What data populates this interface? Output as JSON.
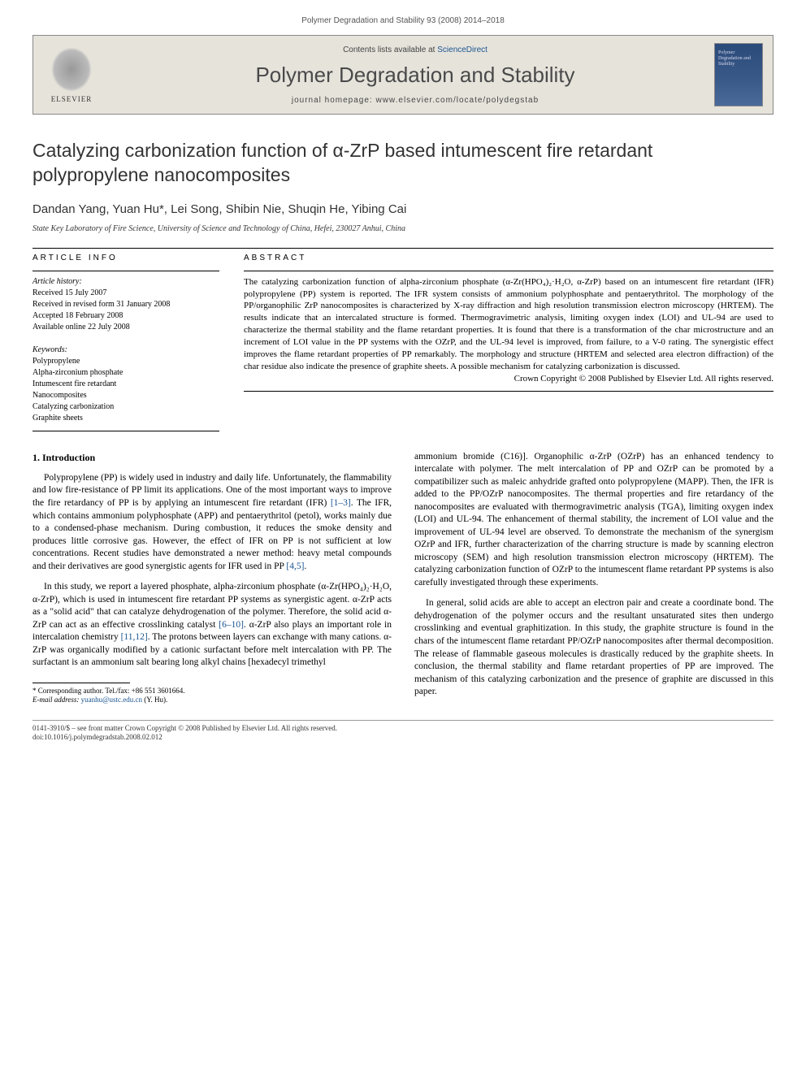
{
  "page_header": "Polymer Degradation and Stability 93 (2008) 2014–2018",
  "journal_box": {
    "elsevier": "ELSEVIER",
    "contents_prefix": "Contents lists available at ",
    "contents_link": "ScienceDirect",
    "journal_title": "Polymer Degradation and Stability",
    "homepage_prefix": "journal homepage: ",
    "homepage_url": "www.elsevier.com/locate/polydegstab",
    "cover_text": "Polymer Degradation and Stability"
  },
  "article": {
    "title": "Catalyzing carbonization function of α-ZrP based intumescent fire retardant polypropylene nanocomposites",
    "authors": "Dandan Yang, Yuan Hu*, Lei Song, Shibin Nie, Shuqin He, Yibing Cai",
    "affiliation": "State Key Laboratory of Fire Science, University of Science and Technology of China, Hefei, 230027 Anhui, China"
  },
  "info": {
    "heading": "ARTICLE INFO",
    "history_label": "Article history:",
    "received": "Received 15 July 2007",
    "revised": "Received in revised form 31 January 2008",
    "accepted": "Accepted 18 February 2008",
    "online": "Available online 22 July 2008",
    "keywords_label": "Keywords:",
    "keywords": [
      "Polypropylene",
      "Alpha-zirconium phosphate",
      "Intumescent fire retardant",
      "Nanocomposites",
      "Catalyzing carbonization",
      "Graphite sheets"
    ]
  },
  "abstract": {
    "heading": "ABSTRACT",
    "text": "The catalyzing carbonization function of alpha-zirconium phosphate (α-Zr(HPO₄)₂·H₂O, α-ZrP) based on an intumescent fire retardant (IFR) polypropylene (PP) system is reported. The IFR system consists of ammonium polyphosphate and pentaerythritol. The morphology of the PP/organophilic ZrP nanocomposites is characterized by X-ray diffraction and high resolution transmission electron microscopy (HRTEM). The results indicate that an intercalated structure is formed. Thermogravimetric analysis, limiting oxygen index (LOI) and UL-94 are used to characterize the thermal stability and the flame retardant properties. It is found that there is a transformation of the char microstructure and an increment of LOI value in the PP systems with the OZrP, and the UL-94 level is improved, from failure, to a V-0 rating. The synergistic effect improves the flame retardant properties of PP remarkably. The morphology and structure (HRTEM and selected area electron diffraction) of the char residue also indicate the presence of graphite sheets. A possible mechanism for catalyzing carbonization is discussed.",
    "copyright": "Crown Copyright © 2008 Published by Elsevier Ltd. All rights reserved."
  },
  "body": {
    "section_head": "1. Introduction",
    "p1a": "Polypropylene (PP) is widely used in industry and daily life. Unfortunately, the flammability and low fire-resistance of PP limit its applications. One of the most important ways to improve the fire retardancy of PP is by applying an intumescent fire retardant (IFR) ",
    "p1_cite1": "[1–3]",
    "p1b": ". The IFR, which contains ammonium polyphosphate (APP) and pentaerythritol (petol), works mainly due to a condensed-phase mechanism. During combustion, it reduces the smoke density and produces little corrosive gas. However, the effect of IFR on PP is not sufficient at low concentrations. Recent studies have demonstrated a newer method: heavy metal compounds and their derivatives are good synergistic agents for IFR used in PP ",
    "p1_cite2": "[4,5]",
    "p1c": ".",
    "p2a": "In this study, we report a layered phosphate, alpha-zirconium phosphate (α-Zr(HPO₄)₂·H₂O, α-ZrP), which is used in intumescent fire retardant PP systems as synergistic agent. α-ZrP acts as a \"solid acid\" that can catalyze dehydrogenation of the polymer. Therefore, the solid acid α-ZrP can act as an effective crosslinking catalyst ",
    "p2_cite1": "[6–10]",
    "p2b": ". α-ZrP also plays an important role in intercalation chemistry ",
    "p2_cite2": "[11,12]",
    "p2c": ". The protons between layers can exchange with many cations. α-ZrP was organically modified by a cationic surfactant before melt intercalation with PP. The surfactant is an ammonium salt bearing long alkyl chains [hexadecyl trimethyl",
    "p3": "ammonium bromide (C16)]. Organophilic α-ZrP (OZrP) has an enhanced tendency to intercalate with polymer. The melt intercalation of PP and OZrP can be promoted by a compatibilizer such as maleic anhydride grafted onto polypropylene (MAPP). Then, the IFR is added to the PP/OZrP nanocomposites. The thermal properties and fire retardancy of the nanocomposites are evaluated with thermogravimetric analysis (TGA), limiting oxygen index (LOI) and UL-94. The enhancement of thermal stability, the increment of LOI value and the improvement of UL-94 level are observed. To demonstrate the mechanism of the synergism OZrP and IFR, further characterization of the charring structure is made by scanning electron microscopy (SEM) and high resolution transmission electron microscopy (HRTEM). The catalyzing carbonization function of OZrP to the intumescent flame retardant PP systems is also carefully investigated through these experiments.",
    "p4": "In general, solid acids are able to accept an electron pair and create a coordinate bond. The dehydrogenation of the polymer occurs and the resultant unsaturated sites then undergo crosslinking and eventual graphitization. In this study, the graphite structure is found in the chars of the intumescent flame retardant PP/OZrP nanocomposites after thermal decomposition. The release of flammable gaseous molecules is drastically reduced by the graphite sheets. In conclusion, the thermal stability and flame retardant properties of PP are improved. The mechanism of this catalyzing carbonization and the presence of graphite are discussed in this paper."
  },
  "footnote": {
    "corresponding": "* Corresponding author. Tel./fax: +86 551 3601664.",
    "email_label": "E-mail address: ",
    "email": "yuanhu@ustc.edu.cn",
    "email_suffix": " (Y. Hu)."
  },
  "footer": {
    "line1": "0141-3910/$ – see front matter Crown Copyright © 2008 Published by Elsevier Ltd. All rights reserved.",
    "line2": "doi:10.1016/j.polymdegradstab.2008.02.012"
  }
}
